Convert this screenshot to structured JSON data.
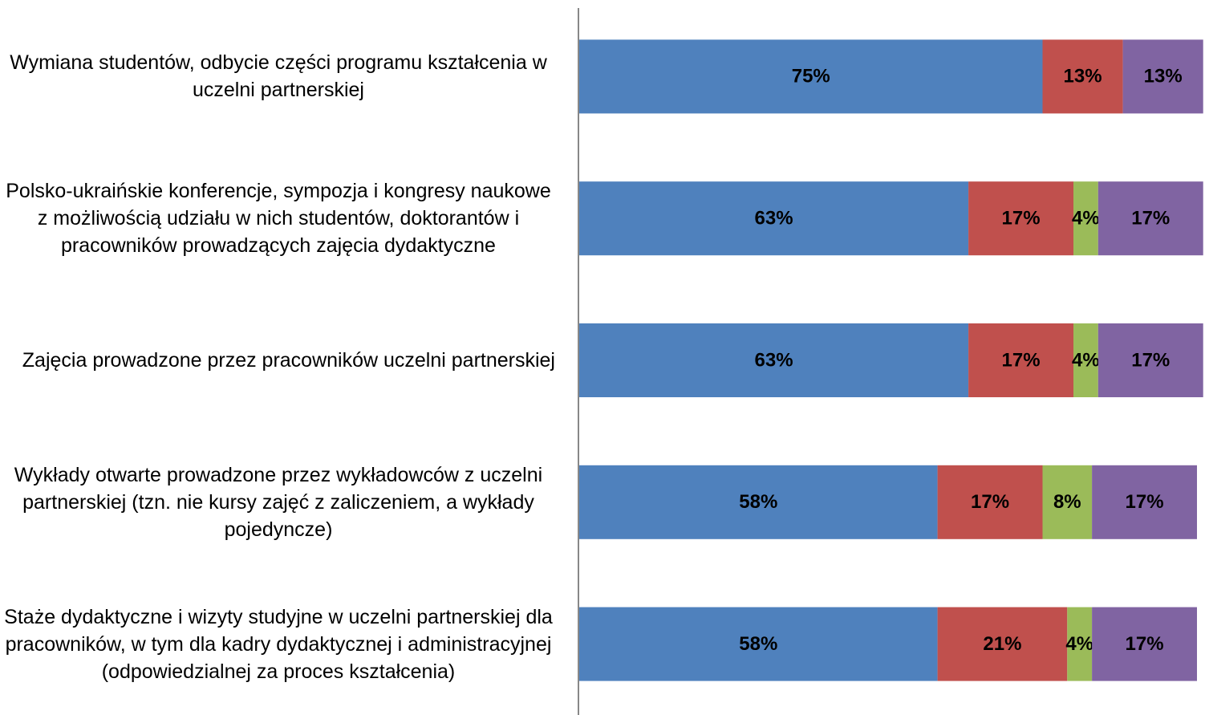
{
  "chart_data": {
    "type": "stacked-bar-horizontal",
    "categories": [
      "Wymiana studentów, odbycie części programu kształcenia w uczelni partnerskiej",
      "Polsko-ukraińskie konferencje, sympozja i kongresy naukowe z możliwością udziału w nich studentów, doktorantów i pracowników prowadzących zajęcia dydaktyczne",
      "Zajęcia prowadzone przez pracowników uczelni partnerskiej",
      "Wykłady otwarte prowadzone przez wykładowców z uczelni partnerskiej (tzn. nie kursy zajęć z zaliczeniem, a wykłady pojedyncze)",
      "Staże dydaktyczne i wizyty studyjne w uczelni partnerskiej dla pracowników, w tym dla kadry dydaktycznej i administracyjnej (odpowiedzialnej za proces kształcenia)"
    ],
    "series": [
      {
        "color": "#4f81bd",
        "values": [
          75,
          63,
          63,
          58,
          58
        ],
        "value_labels": [
          "75%",
          "63%",
          "63%",
          "58%",
          "58%"
        ]
      },
      {
        "color": "#c0504d",
        "values": [
          13,
          17,
          17,
          17,
          21
        ],
        "value_labels": [
          "13%",
          "17%",
          "17%",
          "17%",
          "21%"
        ]
      },
      {
        "color": "#9bbb59",
        "values": [
          null,
          4,
          4,
          8,
          4
        ],
        "value_labels": [
          null,
          "4%",
          "4%",
          "8%",
          "4%"
        ]
      },
      {
        "color": "#8064a2",
        "values": [
          13,
          17,
          17,
          17,
          17
        ],
        "value_labels": [
          "13%",
          "17%",
          "17%",
          "17%",
          "17%"
        ]
      }
    ],
    "xlim": [
      0,
      100
    ]
  }
}
